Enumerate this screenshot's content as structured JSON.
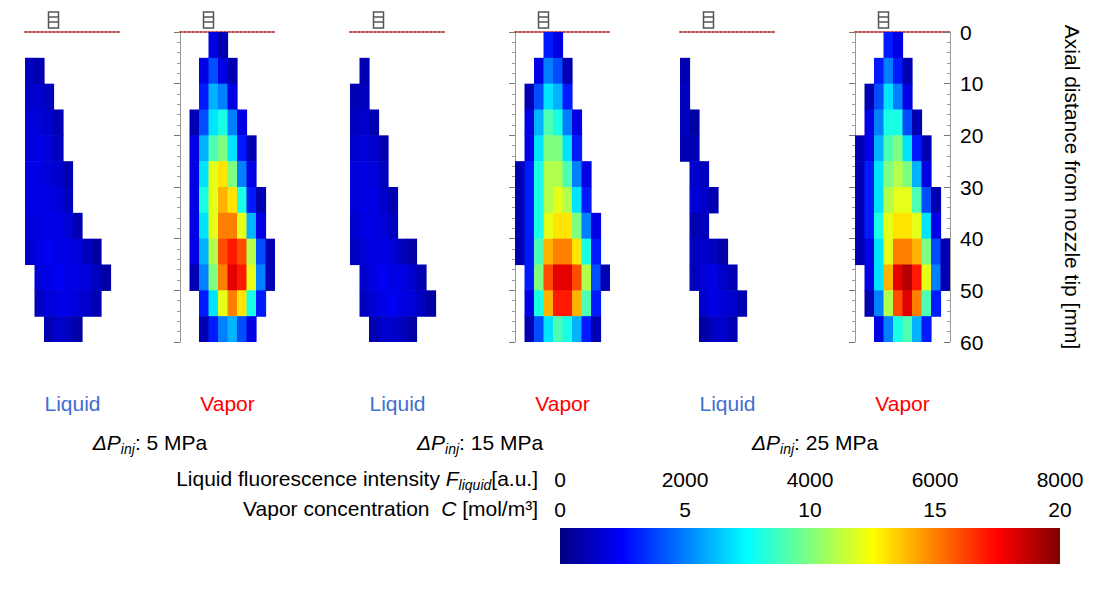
{
  "chart_data": {
    "type": "heatmap",
    "ylabel": "Axial distance from nozzle tip [mm]",
    "ylim": [
      0,
      60
    ],
    "yticks": [
      0,
      10,
      20,
      30,
      40,
      50,
      60
    ],
    "xlim": [
      -6,
      14
    ],
    "tick_labels": "y",
    "x": [
      -5,
      -3,
      -1,
      1,
      3,
      5,
      7,
      9,
      11,
      13
    ],
    "y": [
      2.5,
      7.5,
      12.5,
      17.5,
      22.5,
      27.5,
      32.5,
      37.5,
      42.5,
      47.5,
      52.5,
      57.5
    ],
    "groups": [
      {
        "label": {
          "symbol": "ΔP",
          "sub": "inj",
          "text": ": 5 MPa"
        },
        "panels": [
          {
            "name": "Liquid",
            "color": "#3f6fd0",
            "cells": [
              [
                null,
                null,
                null,
                null,
                null,
                null,
                null,
                null,
                null,
                null
              ],
              [
                500,
                400,
                null,
                null,
                null,
                null,
                null,
                null,
                null,
                null
              ],
              [
                600,
                600,
                500,
                null,
                null,
                null,
                null,
                null,
                null,
                null
              ],
              [
                700,
                700,
                600,
                400,
                null,
                null,
                null,
                null,
                null,
                null
              ],
              [
                700,
                800,
                700,
                500,
                null,
                null,
                null,
                null,
                null,
                null
              ],
              [
                800,
                800,
                700,
                600,
                400,
                null,
                null,
                null,
                null,
                null
              ],
              [
                800,
                800,
                800,
                700,
                500,
                null,
                null,
                null,
                null,
                null
              ],
              [
                700,
                800,
                800,
                800,
                700,
                400,
                null,
                null,
                null,
                null
              ],
              [
                600,
                800,
                900,
                800,
                800,
                700,
                500,
                300,
                null,
                null
              ],
              [
                null,
                700,
                800,
                900,
                800,
                800,
                700,
                500,
                300,
                null
              ],
              [
                null,
                500,
                700,
                800,
                800,
                700,
                600,
                400,
                null,
                null
              ],
              [
                null,
                null,
                400,
                600,
                500,
                300,
                null,
                null,
                null,
                null
              ]
            ]
          },
          {
            "name": "Vapor",
            "color": "#ff0000",
            "cells": [
              [
                null,
                null,
                null,
                2,
                1,
                null,
                null,
                null,
                null,
                null
              ],
              [
                null,
                null,
                2,
                4,
                2,
                1,
                null,
                null,
                null,
                null
              ],
              [
                null,
                null,
                3,
                6,
                5,
                2,
                null,
                null,
                null,
                null
              ],
              [
                null,
                1,
                4,
                7,
                8,
                5,
                2,
                null,
                null,
                null
              ],
              [
                null,
                2,
                6,
                9,
                10,
                7,
                3,
                1,
                null,
                null
              ],
              [
                null,
                2,
                7,
                12,
                13,
                10,
                5,
                2,
                null,
                null
              ],
              [
                null,
                2,
                8,
                12,
                14,
                13,
                8,
                3,
                1,
                null
              ],
              [
                null,
                2,
                7,
                12,
                15,
                15,
                12,
                6,
                2,
                null
              ],
              [
                null,
                2,
                6,
                11,
                16,
                17,
                16,
                11,
                4,
                1
              ],
              [
                null,
                1,
                5,
                10,
                15,
                18,
                17,
                12,
                5,
                1
              ],
              [
                null,
                null,
                3,
                7,
                12,
                15,
                13,
                8,
                3,
                null
              ],
              [
                null,
                null,
                1,
                3,
                5,
                6,
                4,
                2,
                null,
                null
              ]
            ]
          }
        ]
      },
      {
        "label": {
          "symbol": "ΔP",
          "sub": "inj",
          "text": ": 15 MPa"
        },
        "panels": [
          {
            "name": "Liquid",
            "color": "#3f6fd0",
            "cells": [
              [
                null,
                null,
                null,
                null,
                null,
                null,
                null,
                null,
                null,
                null
              ],
              [
                null,
                400,
                null,
                null,
                null,
                null,
                null,
                null,
                null,
                null
              ],
              [
                400,
                500,
                null,
                null,
                null,
                null,
                null,
                null,
                null,
                null
              ],
              [
                500,
                600,
                400,
                null,
                null,
                null,
                null,
                null,
                null,
                null
              ],
              [
                600,
                700,
                600,
                400,
                null,
                null,
                null,
                null,
                null,
                null
              ],
              [
                700,
                800,
                700,
                500,
                null,
                null,
                null,
                null,
                null,
                null
              ],
              [
                700,
                800,
                800,
                600,
                400,
                null,
                null,
                null,
                null,
                null
              ],
              [
                600,
                800,
                800,
                700,
                500,
                null,
                null,
                null,
                null,
                null
              ],
              [
                500,
                700,
                800,
                800,
                700,
                500,
                300,
                null,
                null,
                null
              ],
              [
                null,
                600,
                800,
                900,
                800,
                800,
                600,
                400,
                null,
                null
              ],
              [
                null,
                500,
                700,
                800,
                900,
                800,
                700,
                500,
                300,
                null
              ],
              [
                null,
                null,
                400,
                600,
                600,
                500,
                300,
                null,
                null,
                null
              ]
            ]
          },
          {
            "name": "Vapor",
            "color": "#ff0000",
            "cells": [
              [
                null,
                null,
                null,
                3,
                2,
                null,
                null,
                null,
                null,
                null
              ],
              [
                null,
                null,
                2,
                5,
                4,
                1,
                null,
                null,
                null,
                null
              ],
              [
                null,
                1,
                4,
                7,
                6,
                3,
                null,
                null,
                null,
                null
              ],
              [
                null,
                2,
                6,
                9,
                8,
                5,
                2,
                null,
                null,
                null
              ],
              [
                null,
                2,
                7,
                10,
                10,
                7,
                3,
                null,
                null,
                null
              ],
              [
                1,
                3,
                8,
                11,
                11,
                9,
                5,
                2,
                null,
                null
              ],
              [
                1,
                3,
                8,
                11,
                12,
                11,
                7,
                3,
                null,
                null
              ],
              [
                1,
                3,
                8,
                12,
                13,
                13,
                10,
                5,
                2,
                null
              ],
              [
                1,
                3,
                9,
                14,
                15,
                15,
                13,
                8,
                3,
                null
              ],
              [
                null,
                3,
                10,
                16,
                18,
                18,
                16,
                11,
                4,
                1
              ],
              [
                null,
                2,
                8,
                14,
                17,
                17,
                14,
                9,
                3,
                null
              ],
              [
                null,
                1,
                4,
                7,
                9,
                8,
                6,
                3,
                1,
                null
              ]
            ]
          }
        ]
      },
      {
        "label": {
          "symbol": "ΔP",
          "sub": "inj",
          "text": ": 25 MPa"
        },
        "panels": [
          {
            "name": "Liquid",
            "color": "#3f6fd0",
            "cells": [
              [
                null,
                null,
                null,
                null,
                null,
                null,
                null,
                null,
                null,
                null
              ],
              [
                400,
                null,
                null,
                null,
                null,
                null,
                null,
                null,
                null,
                null
              ],
              [
                500,
                null,
                null,
                null,
                null,
                null,
                null,
                null,
                null,
                null
              ],
              [
                500,
                300,
                null,
                null,
                null,
                null,
                null,
                null,
                null,
                null
              ],
              [
                400,
                400,
                null,
                null,
                null,
                null,
                null,
                null,
                null,
                null
              ],
              [
                null,
                600,
                500,
                null,
                null,
                null,
                null,
                null,
                null,
                null
              ],
              [
                null,
                700,
                600,
                400,
                null,
                null,
                null,
                null,
                null,
                null
              ],
              [
                null,
                400,
                500,
                null,
                null,
                null,
                null,
                null,
                null,
                null
              ],
              [
                null,
                500,
                600,
                500,
                300,
                null,
                null,
                null,
                null,
                null
              ],
              [
                null,
                500,
                700,
                800,
                600,
                400,
                null,
                null,
                null,
                null
              ],
              [
                null,
                null,
                600,
                800,
                700,
                600,
                400,
                null,
                null,
                null
              ],
              [
                null,
                null,
                300,
                500,
                600,
                400,
                null,
                null,
                null,
                null
              ]
            ]
          },
          {
            "name": "Vapor",
            "color": "#ff0000",
            "cells": [
              [
                null,
                null,
                null,
                3,
                2,
                null,
                null,
                null,
                null,
                null
              ],
              [
                null,
                null,
                3,
                5,
                3,
                1,
                null,
                null,
                null,
                null
              ],
              [
                null,
                1,
                4,
                7,
                5,
                2,
                null,
                null,
                null,
                null
              ],
              [
                null,
                2,
                5,
                8,
                8,
                4,
                1,
                null,
                null,
                null
              ],
              [
                1,
                2,
                6,
                9,
                10,
                7,
                3,
                1,
                null,
                null
              ],
              [
                1,
                3,
                7,
                10,
                11,
                10,
                6,
                2,
                null,
                null
              ],
              [
                1,
                3,
                7,
                11,
                12,
                12,
                9,
                4,
                1,
                null
              ],
              [
                1,
                3,
                8,
                12,
                13,
                13,
                12,
                7,
                2,
                null
              ],
              [
                1,
                2,
                7,
                12,
                15,
                15,
                14,
                10,
                4,
                1
              ],
              [
                null,
                2,
                7,
                14,
                18,
                19,
                17,
                12,
                5,
                1
              ],
              [
                null,
                1,
                5,
                11,
                16,
                18,
                15,
                9,
                3,
                null
              ],
              [
                null,
                null,
                2,
                5,
                8,
                9,
                6,
                3,
                null,
                null
              ]
            ]
          }
        ]
      }
    ],
    "color_bars": [
      {
        "panel": "Liquid",
        "title": {
          "text": "Liquid fluorescence intensity ",
          "symbol": "F",
          "sub": "liquid",
          "unit": "[a.u.]"
        },
        "range": [
          0,
          8000
        ],
        "ticks": [
          0,
          2000,
          4000,
          6000,
          8000
        ]
      },
      {
        "panel": "Vapor",
        "title": {
          "text": "Vapor concentration  ",
          "symbol": "C",
          "unit": " [mol/m³]"
        },
        "range": [
          0,
          20
        ],
        "ticks": [
          0,
          5,
          10,
          15,
          20
        ]
      }
    ]
  }
}
